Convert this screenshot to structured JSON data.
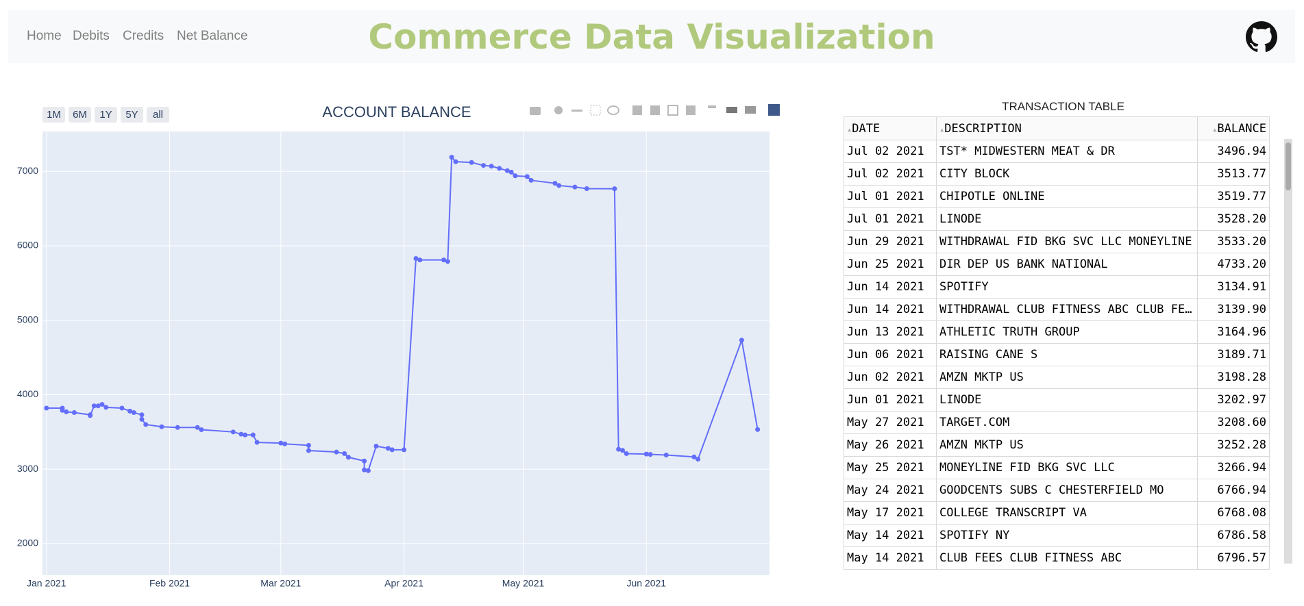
{
  "nav": {
    "links": [
      "Home",
      "Debits",
      "Credits",
      "Net Balance"
    ],
    "brand": "Commerce Data Visualization"
  },
  "chart_data": {
    "type": "line",
    "title": "ACCOUNT BALANCE",
    "color": "#636efa",
    "range_buttons": [
      "1M",
      "6M",
      "1Y",
      "5Y",
      "all"
    ],
    "x": [
      "2021-01-01",
      "2021-01-05",
      "2021-01-05",
      "2021-01-06",
      "2021-01-08",
      "2021-01-12",
      "2021-01-12",
      "2021-01-13",
      "2021-01-14",
      "2021-01-15",
      "2021-01-16",
      "2021-01-20",
      "2021-01-22",
      "2021-01-23",
      "2021-01-25",
      "2021-01-25",
      "2021-01-26",
      "2021-01-30",
      "2021-02-03",
      "2021-02-08",
      "2021-02-09",
      "2021-02-17",
      "2021-02-19",
      "2021-02-20",
      "2021-02-22",
      "2021-02-23",
      "2021-03-01",
      "2021-03-02",
      "2021-03-08",
      "2021-03-08",
      "2021-03-15",
      "2021-03-17",
      "2021-03-18",
      "2021-03-22",
      "2021-03-22",
      "2021-03-23",
      "2021-03-25",
      "2021-03-28",
      "2021-03-29",
      "2021-04-01",
      "2021-04-04",
      "2021-04-05",
      "2021-04-11",
      "2021-04-12",
      "2021-04-13",
      "2021-04-14",
      "2021-04-18",
      "2021-04-21",
      "2021-04-23",
      "2021-04-25",
      "2021-04-27",
      "2021-04-28",
      "2021-04-29",
      "2021-05-02",
      "2021-05-03",
      "2021-05-09",
      "2021-05-10",
      "2021-05-14",
      "2021-05-17",
      "2021-05-24",
      "2021-05-25",
      "2021-05-26",
      "2021-05-27",
      "2021-06-01",
      "2021-06-02",
      "2021-06-06",
      "2021-06-13",
      "2021-06-14",
      "2021-06-25",
      "2021-06-29"
    ],
    "values": [
      3820,
      3820,
      3790,
      3770,
      3760,
      3730,
      3720,
      3850,
      3850,
      3870,
      3830,
      3820,
      3780,
      3760,
      3730,
      3670,
      3600,
      3570,
      3560,
      3560,
      3530,
      3500,
      3470,
      3460,
      3460,
      3360,
      3350,
      3340,
      3320,
      3250,
      3230,
      3210,
      3160,
      3110,
      2990,
      2980,
      3310,
      3280,
      3260,
      3260,
      5830,
      5810,
      5810,
      5790,
      7190,
      7130,
      7120,
      7080,
      7070,
      7040,
      7010,
      6990,
      6940,
      6930,
      6880,
      6840,
      6810,
      6790,
      6768,
      6767,
      3267,
      3252,
      3209,
      3203,
      3198,
      3190,
      3165,
      3135,
      4733,
      3533
    ],
    "xlim": [
      "2020-12-31",
      "2021-07-02"
    ],
    "xticks": [
      {
        "value": "2021-01-01",
        "label": "Jan 2021"
      },
      {
        "value": "2021-02-01",
        "label": "Feb 2021"
      },
      {
        "value": "2021-03-01",
        "label": "Mar 2021"
      },
      {
        "value": "2021-04-01",
        "label": "Apr 2021"
      },
      {
        "value": "2021-05-01",
        "label": "May 2021"
      },
      {
        "value": "2021-06-01",
        "label": "Jun 2021"
      }
    ],
    "ylim": [
      1576,
      7536
    ],
    "yticks": [
      2000,
      3000,
      4000,
      5000,
      6000,
      7000
    ],
    "grid": true
  },
  "table": {
    "title": "TRANSACTION TABLE",
    "header": [
      "DATE",
      "DESCRIPTION",
      "BALANCE"
    ],
    "rows": [
      [
        "Jul 02 2021",
        "TST* MIDWESTERN MEAT & DR",
        "3496.94"
      ],
      [
        "Jul 02 2021",
        "CITY BLOCK",
        "3513.77"
      ],
      [
        "Jul 01 2021",
        "CHIPOTLE ONLINE",
        "3519.77"
      ],
      [
        "Jul 01 2021",
        "LINODE",
        "3528.20"
      ],
      [
        "Jun 29 2021",
        "WITHDRAWAL FID BKG SVC LLC MONEYLINE",
        "3533.20"
      ],
      [
        "Jun 25 2021",
        "DIR DEP US BANK NATIONAL",
        "4733.20"
      ],
      [
        "Jun 14 2021",
        "SPOTIFY",
        "3134.91"
      ],
      [
        "Jun 14 2021",
        "WITHDRAWAL CLUB FITNESS ABC CLUB FE…",
        "3139.90"
      ],
      [
        "Jun 13 2021",
        "ATHLETIC TRUTH GROUP",
        "3164.96"
      ],
      [
        "Jun 06 2021",
        "RAISING CANE S",
        "3189.71"
      ],
      [
        "Jun 02 2021",
        "AMZN MKTP US",
        "3198.28"
      ],
      [
        "Jun 01 2021",
        "LINODE",
        "3202.97"
      ],
      [
        "May 27 2021",
        "TARGET.COM",
        "3208.60"
      ],
      [
        "May 26 2021",
        "AMZN MKTP US",
        "3252.28"
      ],
      [
        "May 25 2021",
        "MONEYLINE FID BKG SVC LLC",
        "3266.94"
      ],
      [
        "May 24 2021",
        "GOODCENTS SUBS C CHESTERFIELD MO",
        "6766.94"
      ],
      [
        "May 17 2021",
        "COLLEGE TRANSCRIPT VA",
        "6768.08"
      ],
      [
        "May 14 2021",
        "SPOTIFY NY",
        "6786.58"
      ],
      [
        "May 14 2021",
        "CLUB FEES CLUB FITNESS ABC",
        "6796.57"
      ]
    ]
  }
}
